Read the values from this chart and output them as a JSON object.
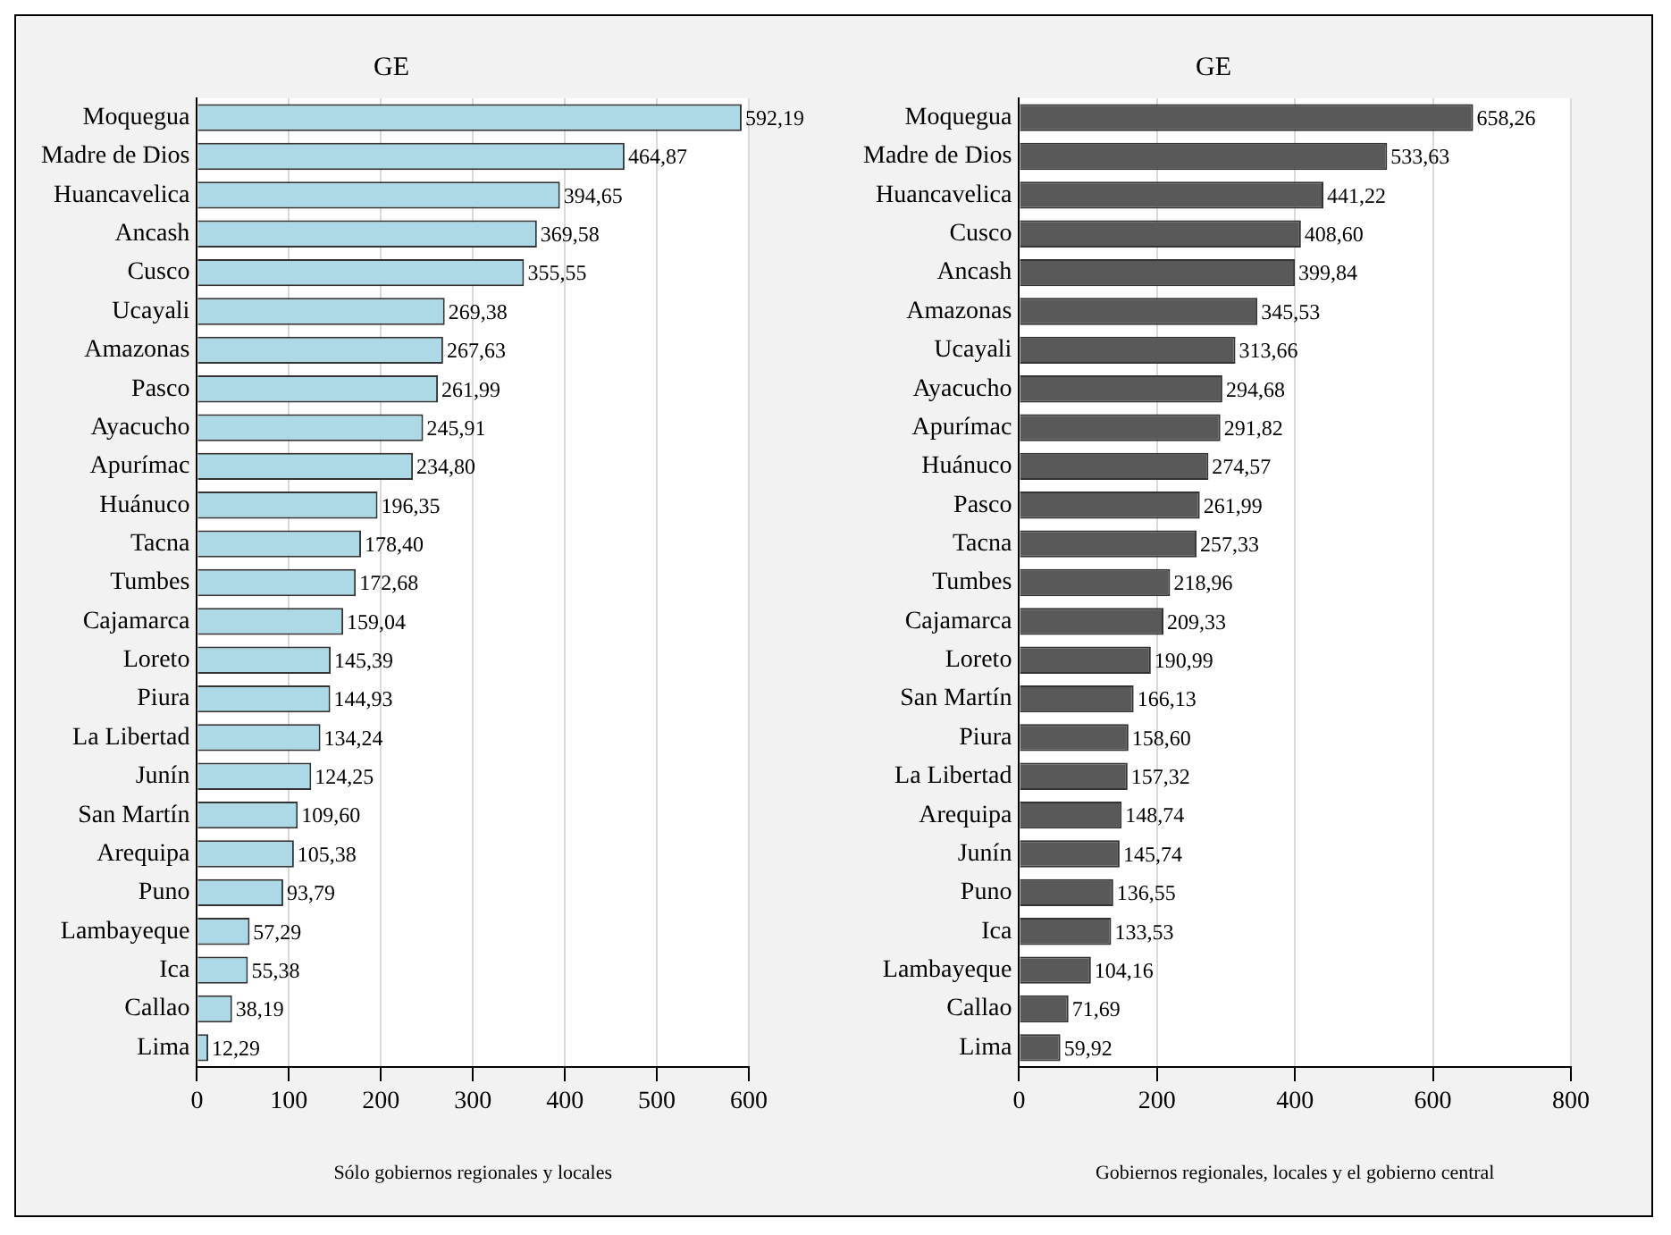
{
  "chart_data": [
    {
      "type": "bar",
      "orientation": "horizontal",
      "title": "GE",
      "xlabel": "Sólo gobiernos regionales y locales",
      "grid": "x",
      "color": "#add8e6",
      "categories": [
        "Moquegua",
        "Madre de Dios",
        "Huancavelica",
        "Ancash",
        "Cusco",
        "Ucayali",
        "Amazonas",
        "Pasco",
        "Ayacucho",
        "Apurímac",
        "Huánuco",
        "Tacna",
        "Tumbes",
        "Cajamarca",
        "Loreto",
        "Piura",
        "La Libertad",
        "Junín",
        "San Martín",
        "Arequipa",
        "Puno",
        "Lambayeque",
        "Ica",
        "Callao",
        "Lima"
      ],
      "values": [
        592.19,
        464.87,
        394.65,
        369.58,
        355.55,
        269.38,
        267.63,
        261.99,
        245.91,
        234.8,
        196.35,
        178.4,
        172.68,
        159.04,
        145.39,
        144.93,
        134.24,
        124.25,
        109.6,
        105.38,
        93.79,
        57.29,
        55.38,
        38.19,
        12.29
      ],
      "value_labels": [
        "592,19",
        "464,87",
        "394,65",
        "369,58",
        "355,55",
        "269,38",
        "267,63",
        "261,99",
        "245,91",
        "234,80",
        "196,35",
        "178,40",
        "172,68",
        "159,04",
        "145,39",
        "144,93",
        "134,24",
        "124,25",
        "109,60",
        "105,38",
        "93,79",
        "57,29",
        "55,38",
        "38,19",
        "12,29"
      ],
      "xlim": [
        0,
        600
      ],
      "xticks": [
        0,
        100,
        200,
        300,
        400,
        500,
        600
      ]
    },
    {
      "type": "bar",
      "orientation": "horizontal",
      "title": "GE",
      "xlabel": "Gobiernos regionales, locales y el gobierno central",
      "grid": "x",
      "color": "#595959",
      "categories": [
        "Moquegua",
        "Madre de Dios",
        "Huancavelica",
        "Cusco",
        "Ancash",
        "Amazonas",
        "Ucayali",
        "Ayacucho",
        "Apurímac",
        "Huánuco",
        "Pasco",
        "Tacna",
        "Tumbes",
        "Cajamarca",
        "Loreto",
        "San Martín",
        "Piura",
        "La Libertad",
        "Arequipa",
        "Junín",
        "Puno",
        "Ica",
        "Lambayeque",
        "Callao",
        "Lima"
      ],
      "values": [
        658.26,
        533.63,
        441.22,
        408.6,
        399.84,
        345.53,
        313.66,
        294.68,
        291.82,
        274.57,
        261.99,
        257.33,
        218.96,
        209.33,
        190.99,
        166.13,
        158.6,
        157.32,
        148.74,
        145.74,
        136.55,
        133.53,
        104.16,
        71.69,
        59.92
      ],
      "value_labels": [
        "658,26",
        "533,63",
        "441,22",
        "408,60",
        "399,84",
        "345,53",
        "313,66",
        "294,68",
        "291,82",
        "274,57",
        "261,99",
        "257,33",
        "218,96",
        "209,33",
        "190,99",
        "166,13",
        "158,60",
        "157,32",
        "148,74",
        "145,74",
        "136,55",
        "133,53",
        "104,16",
        "71,69",
        "59,92"
      ],
      "xlim": [
        0,
        800
      ],
      "xticks": [
        0,
        200,
        400,
        600,
        800
      ]
    }
  ]
}
